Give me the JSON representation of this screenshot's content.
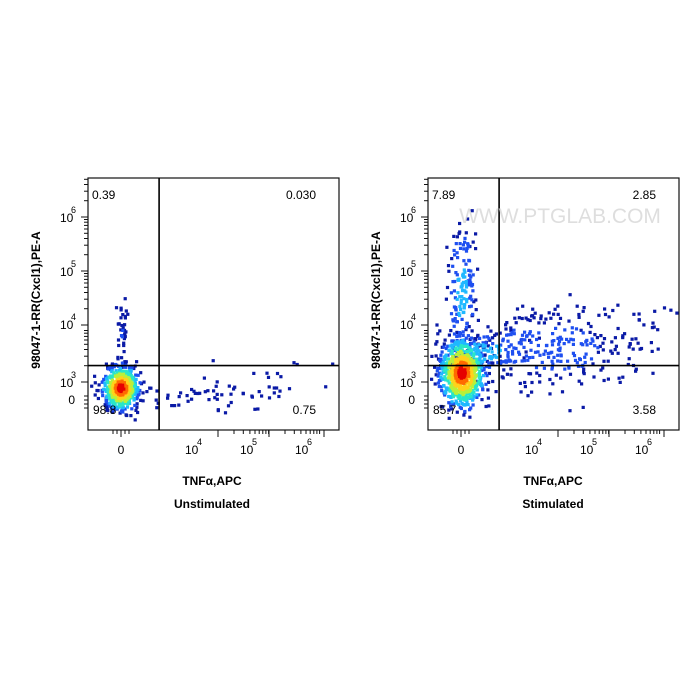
{
  "watermark": "WWW.PTGLAB.COM",
  "colors": {
    "density": [
      "#0a1aa6",
      "#1e4ff0",
      "#1fb8ff",
      "#29e6c8",
      "#b9f03a",
      "#ffd21a",
      "#ff6a00",
      "#e60000"
    ],
    "frame": "#111111",
    "gate": "#000000",
    "watermark": "#d9d9d9"
  },
  "chart_data": [
    {
      "type": "scatter",
      "title": "Unstimulated",
      "xlabel": "TNFα,APC",
      "ylabel": "98047-1-RR(Cxcl1),PE-A",
      "x_ticks": [
        "0",
        "10^4",
        "10^5",
        "10^6"
      ],
      "y_ticks": [
        "0",
        "10^3",
        "10^4",
        "10^5",
        "10^6"
      ],
      "x_gate": 3200,
      "y_gate": 3200,
      "quadrants": {
        "upper_left": "0.39",
        "upper_right": "0.030",
        "lower_left": "98.8",
        "lower_right": "0.75"
      }
    },
    {
      "type": "scatter",
      "title": "Stimulated",
      "xlabel": "TNFα,APC",
      "ylabel": "98047-1-RR(Cxcl1),PE-A",
      "x_ticks": [
        "0",
        "10^4",
        "10^5",
        "10^6"
      ],
      "y_ticks": [
        "0",
        "10^3",
        "10^4",
        "10^5",
        "10^6"
      ],
      "x_gate": 3200,
      "y_gate": 3200,
      "quadrants": {
        "upper_left": "7.89",
        "upper_right": "2.85",
        "lower_left": "85.7",
        "lower_right": "3.58"
      }
    }
  ]
}
